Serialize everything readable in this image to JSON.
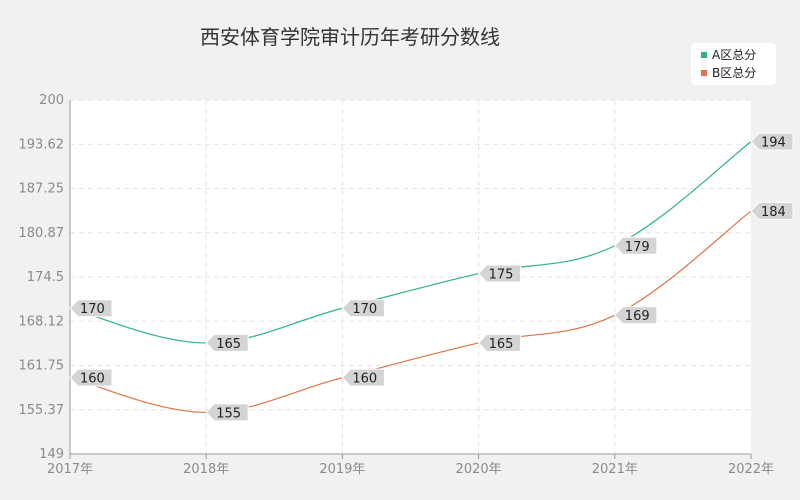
{
  "colors": {
    "series_a": "#2bb38a",
    "series_b": "#e07348",
    "plot_bg": "#ffffff",
    "page_bg": "#f1f1f1"
  },
  "chart_data": {
    "type": "line",
    "title": "西安体育学院审计历年考研分数线",
    "x": [
      "2017年",
      "2018年",
      "2019年",
      "2020年",
      "2021年",
      "2022年"
    ],
    "yticks": [
      "149",
      "155.37",
      "161.75",
      "168.12",
      "174.5",
      "180.87",
      "187.25",
      "193.62",
      "200"
    ],
    "ylim": [
      149,
      200
    ],
    "grid": true,
    "legend": "top-right",
    "series": [
      {
        "name": "A区总分",
        "color": "#2bb38a",
        "values": [
          170,
          165,
          170,
          175,
          179,
          194
        ]
      },
      {
        "name": "B区总分",
        "color": "#e07348",
        "values": [
          160,
          155,
          160,
          165,
          169,
          184
        ]
      }
    ]
  }
}
